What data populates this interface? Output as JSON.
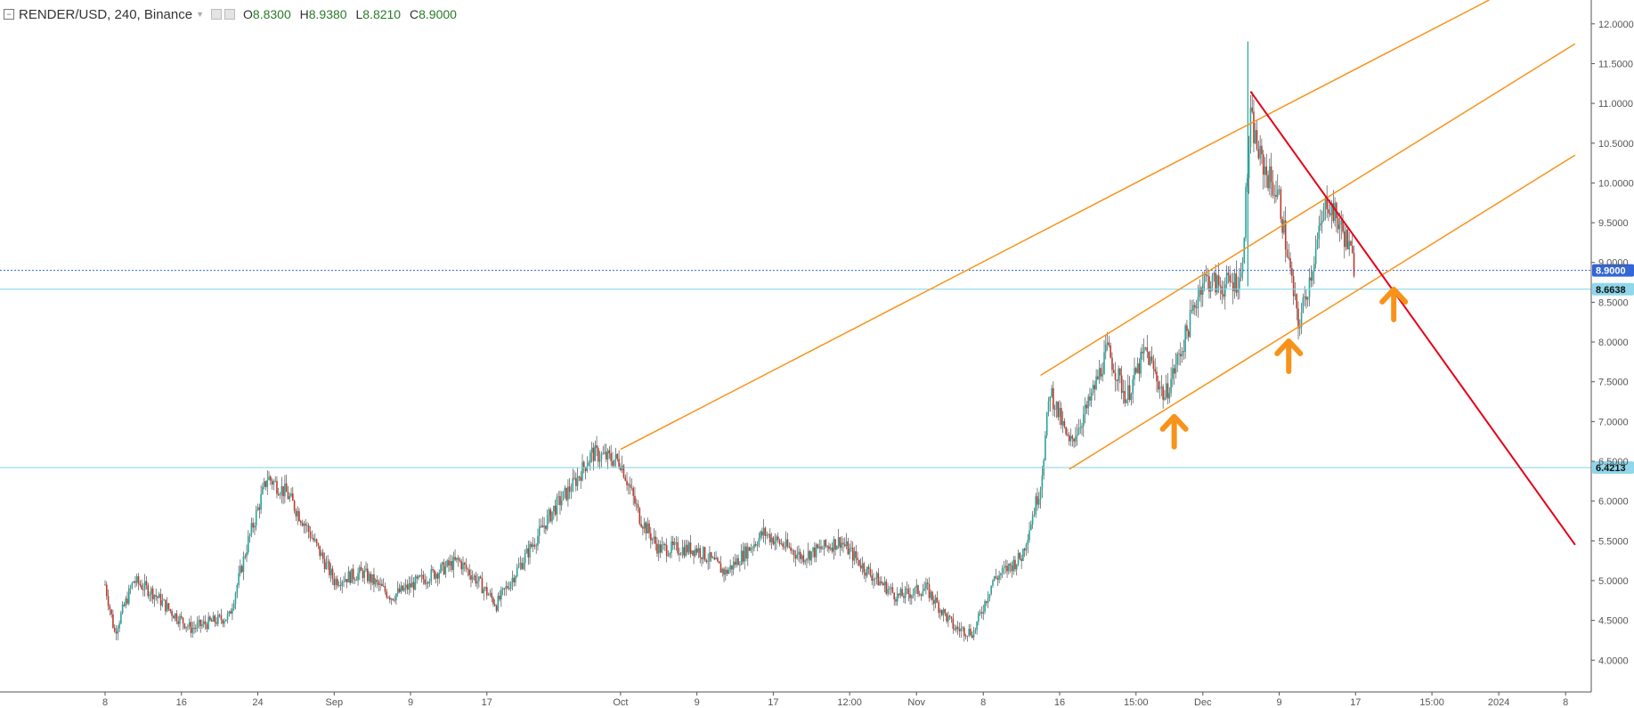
{
  "header": {
    "symbol": "RENDER/USD, 240, Binance",
    "open_label": "O",
    "open": "8.8300",
    "high_label": "H",
    "high": "8.9380",
    "low_label": "L",
    "low": "8.8210",
    "close_label": "C",
    "close": "8.9000"
  },
  "colors": {
    "up": "#26a69a",
    "down": "#c0392b",
    "channel": "#f7931a",
    "trendline": "#e5001a",
    "arrow": "#f7931a",
    "hline": "#7fd3e6",
    "last_price_badge": "#3366d6",
    "level_badge": "#8fd7ea"
  },
  "chart_data": {
    "type": "candlestick",
    "title": "RENDER/USD, 240, Binance",
    "ylim": [
      3.6,
      12.3
    ],
    "y_ticks": [
      "4.0000",
      "4.5000",
      "5.0000",
      "5.5000",
      "6.0000",
      "6.5000",
      "7.0000",
      "7.5000",
      "8.0000",
      "8.5000",
      "9.0000",
      "9.5000",
      "10.0000",
      "10.5000",
      "11.0000",
      "11.5000",
      "12.0000"
    ],
    "x_ticks": [
      "8",
      "16",
      "24",
      "Sep",
      "9",
      "17",
      "Oct",
      "9",
      "17",
      "12:00",
      "Nov",
      "8",
      "16",
      "15:00",
      "Dec",
      "9",
      "17",
      "15:00",
      "2024",
      "8"
    ],
    "time_range": [
      "Aug 08",
      "Jan 08 (2024)"
    ],
    "price_path": [
      [
        "Aug 08",
        4.95
      ],
      [
        "Aug 09",
        4.35
      ],
      [
        "Aug 11",
        5.0
      ],
      [
        "Aug 13",
        4.85
      ],
      [
        "Aug 15",
        4.6
      ],
      [
        "Aug 17",
        4.4
      ],
      [
        "Aug 21",
        4.55
      ],
      [
        "Aug 23",
        5.5
      ],
      [
        "Aug 25",
        6.3
      ],
      [
        "Aug 27",
        6.1
      ],
      [
        "Aug 29",
        5.7
      ],
      [
        "Sep 01",
        5.0
      ],
      [
        "Sep 04",
        5.1
      ],
      [
        "Sep 07",
        4.8
      ],
      [
        "Sep 10",
        5.0
      ],
      [
        "Sep 14",
        5.25
      ],
      [
        "Sep 16",
        5.0
      ],
      [
        "Sep 18",
        4.7
      ],
      [
        "Sep 21",
        5.3
      ],
      [
        "Sep 24",
        5.9
      ],
      [
        "Sep 26",
        6.2
      ],
      [
        "Sep 28",
        6.6
      ],
      [
        "Oct 01",
        6.5
      ],
      [
        "Oct 03",
        5.8
      ],
      [
        "Oct 05",
        5.4
      ],
      [
        "Oct 09",
        5.4
      ],
      [
        "Oct 12",
        5.1
      ],
      [
        "Oct 16",
        5.6
      ],
      [
        "Oct 20",
        5.3
      ],
      [
        "Oct 24",
        5.5
      ],
      [
        "Oct 27",
        5.1
      ],
      [
        "Oct 30",
        4.8
      ],
      [
        "Nov 02",
        4.9
      ],
      [
        "Nov 05",
        4.4
      ],
      [
        "Nov 07",
        4.35
      ],
      [
        "Nov 09",
        5.0
      ],
      [
        "Nov 12",
        5.3
      ],
      [
        "Nov 14",
        6.2
      ],
      [
        "Nov 15",
        7.4
      ],
      [
        "Nov 17",
        6.7
      ],
      [
        "Nov 19",
        7.2
      ],
      [
        "Nov 21",
        7.9
      ],
      [
        "Nov 23",
        7.3
      ],
      [
        "Nov 25",
        7.9
      ],
      [
        "Nov 27",
        7.3
      ],
      [
        "Nov 29",
        8.0
      ],
      [
        "Dec 01",
        8.8
      ],
      [
        "Dec 03",
        8.7
      ],
      [
        "Dec 05",
        8.8
      ],
      [
        "Dec 06",
        10.8
      ],
      [
        "Dec 07",
        10.3
      ],
      [
        "Dec 09",
        9.8
      ],
      [
        "Dec 11",
        8.2
      ],
      [
        "Dec 12",
        8.7
      ],
      [
        "Dec 14",
        9.8
      ],
      [
        "Dec 16",
        9.3
      ],
      [
        "Dec 17",
        8.9
      ]
    ],
    "horizontal_levels": [
      {
        "value": 8.9,
        "label": "8.9000",
        "style": "dotted",
        "color": "#3366d6"
      },
      {
        "value": 8.6638,
        "label": "8.6638",
        "style": "solid",
        "color": "#7fd3e6"
      },
      {
        "value": 6.4213,
        "label": "6.4213",
        "style": "solid",
        "color": "#7fd3e6"
      }
    ],
    "channel_lines": [
      {
        "name": "upper",
        "from": [
          "Oct 01",
          6.65
        ],
        "to": [
          "Dec 31",
          12.3
        ]
      },
      {
        "name": "middle",
        "from": [
          "Nov 14",
          7.58
        ],
        "to": [
          "Jan 09",
          11.75
        ]
      },
      {
        "name": "lower",
        "from": [
          "Nov 17",
          6.4
        ],
        "to": [
          "Jan 09",
          10.35
        ]
      }
    ],
    "trendline": {
      "from": [
        "Dec 06",
        11.15
      ],
      "to": [
        "Jan 09",
        5.45
      ]
    },
    "arrows": [
      [
        "Nov 28",
        6.95
      ],
      [
        "Dec 10",
        7.9
      ],
      [
        "Dec 21",
        8.55
      ]
    ]
  }
}
